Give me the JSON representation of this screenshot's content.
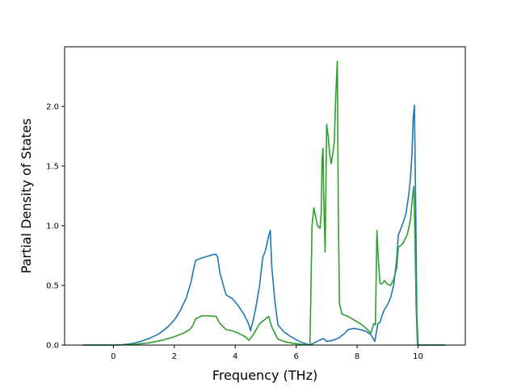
{
  "chart_data": {
    "type": "line",
    "title": "",
    "xlabel": "Frequency (THz)",
    "ylabel": "Partial Density of States",
    "xlim": [
      -1.6,
      11.55
    ],
    "ylim": [
      0,
      2.5
    ],
    "xticks": [
      0,
      2,
      4,
      6,
      8,
      10
    ],
    "yticks": [
      0.0,
      0.5,
      1.0,
      1.5,
      2.0
    ],
    "xtick_labels": [
      "0",
      "2",
      "4",
      "6",
      "8",
      "10"
    ],
    "ytick_labels": [
      "0.0",
      "0.5",
      "1.0",
      "1.5",
      "2.0"
    ],
    "grid": false,
    "legend": "none",
    "series": [
      {
        "color": "#1f77b4",
        "x": [
          -1.0,
          -0.5,
          0.0,
          0.3,
          0.6,
          0.9,
          1.2,
          1.5,
          1.8,
          2.0,
          2.2,
          2.4,
          2.55,
          2.62,
          2.7,
          2.9,
          3.1,
          3.3,
          3.37,
          3.42,
          3.5,
          3.7,
          3.9,
          4.1,
          4.3,
          4.45,
          4.5,
          4.6,
          4.7,
          4.8,
          4.9,
          5.0,
          5.1,
          5.15,
          5.2,
          5.3,
          5.4,
          5.6,
          5.8,
          6.0,
          6.2,
          6.45,
          6.6,
          6.8,
          6.9,
          7.0,
          7.2,
          7.4,
          7.6,
          7.7,
          7.9,
          8.1,
          8.3,
          8.45,
          8.52,
          8.58,
          8.62,
          8.68,
          8.75,
          8.82,
          8.9,
          9.0,
          9.1,
          9.2,
          9.3,
          9.35,
          9.5,
          9.6,
          9.7,
          9.75,
          9.8,
          9.84,
          9.88,
          9.92,
          9.96,
          10.0,
          10.3,
          10.6,
          10.9
        ],
        "y": [
          0,
          0,
          0.0,
          0.003,
          0.012,
          0.03,
          0.058,
          0.095,
          0.155,
          0.21,
          0.29,
          0.4,
          0.53,
          0.62,
          0.71,
          0.73,
          0.745,
          0.76,
          0.76,
          0.74,
          0.6,
          0.42,
          0.39,
          0.33,
          0.25,
          0.17,
          0.12,
          0.22,
          0.35,
          0.5,
          0.73,
          0.8,
          0.92,
          0.96,
          0.65,
          0.37,
          0.17,
          0.11,
          0.075,
          0.045,
          0.02,
          0.0,
          0.02,
          0.045,
          0.055,
          0.03,
          0.04,
          0.06,
          0.1,
          0.13,
          0.14,
          0.13,
          0.115,
          0.085,
          0.06,
          0.03,
          0.09,
          0.18,
          0.19,
          0.25,
          0.3,
          0.34,
          0.4,
          0.5,
          0.72,
          0.92,
          1.02,
          1.1,
          1.27,
          1.4,
          1.6,
          1.9,
          2.01,
          1.2,
          0.25,
          0.0,
          0.0,
          0.0,
          0.0
        ]
      },
      {
        "color": "#2ca02c",
        "x": [
          -1.0,
          -0.5,
          0.0,
          0.4,
          0.8,
          1.2,
          1.6,
          2.0,
          2.3,
          2.5,
          2.6,
          2.7,
          2.9,
          3.1,
          3.37,
          3.5,
          3.7,
          3.9,
          4.1,
          4.3,
          4.45,
          4.6,
          4.8,
          5.0,
          5.1,
          5.2,
          5.4,
          5.6,
          5.9,
          6.2,
          6.45,
          6.48,
          6.52,
          6.58,
          6.62,
          6.7,
          6.78,
          6.82,
          6.85,
          6.88,
          6.9,
          6.95,
          7.0,
          7.05,
          7.1,
          7.15,
          7.2,
          7.25,
          7.3,
          7.35,
          7.38,
          7.42,
          7.5,
          7.7,
          7.9,
          8.1,
          8.3,
          8.45,
          8.55,
          8.6,
          8.65,
          8.7,
          8.75,
          8.8,
          8.9,
          9.0,
          9.1,
          9.2,
          9.3,
          9.35,
          9.5,
          9.65,
          9.75,
          9.82,
          9.86,
          9.9,
          9.94,
          9.98,
          10.3,
          10.6,
          10.9
        ],
        "y": [
          0,
          0,
          0.0,
          0.002,
          0.008,
          0.02,
          0.04,
          0.07,
          0.1,
          0.13,
          0.16,
          0.22,
          0.245,
          0.245,
          0.24,
          0.18,
          0.13,
          0.12,
          0.1,
          0.075,
          0.04,
          0.09,
          0.18,
          0.22,
          0.24,
          0.15,
          0.05,
          0.03,
          0.015,
          0.005,
          0.0,
          0.4,
          1.0,
          1.15,
          1.1,
          1.0,
          0.98,
          1.1,
          1.55,
          1.65,
          1.3,
          0.78,
          1.85,
          1.75,
          1.6,
          1.52,
          1.6,
          1.7,
          2.1,
          2.38,
          1.2,
          0.35,
          0.26,
          0.24,
          0.21,
          0.18,
          0.14,
          0.1,
          0.18,
          0.17,
          0.96,
          0.7,
          0.52,
          0.51,
          0.54,
          0.51,
          0.5,
          0.55,
          0.65,
          0.82,
          0.85,
          0.93,
          1.05,
          1.25,
          1.33,
          0.9,
          0.3,
          0.0,
          0.0,
          0.0,
          0.0
        ]
      }
    ]
  }
}
